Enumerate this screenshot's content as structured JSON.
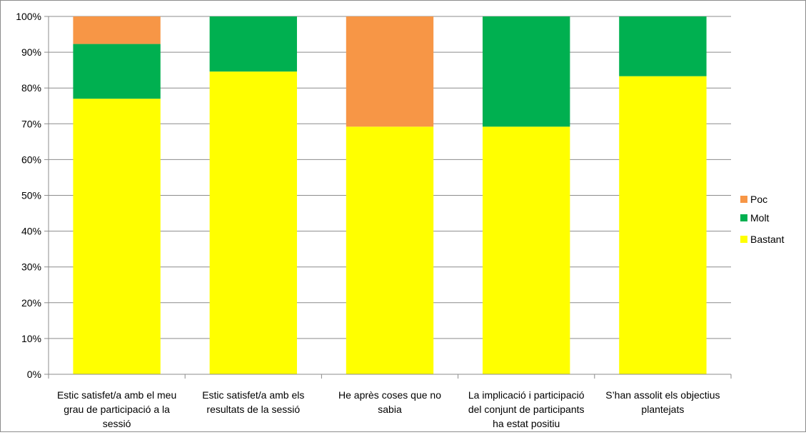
{
  "chart_data": {
    "type": "bar",
    "stacked": true,
    "percent": true,
    "categories": [
      [
        "Estic satisfet/a  amb el meu",
        "grau de participació a la",
        "sessió"
      ],
      [
        "Estic satisfet/a  amb els",
        "resultats de la sessió"
      ],
      [
        "He après coses que no",
        "sabia"
      ],
      [
        "La implicació i participació",
        "del conjunt de participants",
        "ha estat positiu"
      ],
      [
        "S’han assolit els objectius",
        "plantejats"
      ]
    ],
    "series": [
      {
        "name": "Bastant",
        "color": "#ffff00",
        "values": [
          77,
          84.6,
          69.2,
          69.2,
          83.3
        ]
      },
      {
        "name": "Molt",
        "color": "#00b050",
        "values": [
          15.3,
          15.4,
          0,
          30.8,
          16.7
        ]
      },
      {
        "name": "Poc",
        "color": "#f79646",
        "values": [
          7.7,
          0,
          30.8,
          0,
          0
        ]
      }
    ],
    "yticks": [
      "0%",
      "10%",
      "20%",
      "30%",
      "40%",
      "50%",
      "60%",
      "70%",
      "80%",
      "90%",
      "100%"
    ],
    "ylim": [
      0,
      100
    ],
    "legend_order": [
      "Poc",
      "Molt",
      "Bastant"
    ],
    "legend_position": "right",
    "grid": true,
    "colors": {
      "gridline": "#8c8c8c",
      "axis": "#8c8c8c"
    }
  }
}
